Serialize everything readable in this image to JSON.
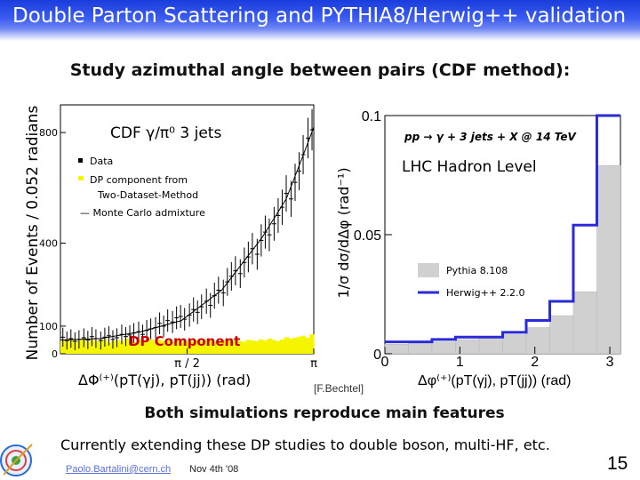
{
  "slide": {
    "title": "Double Parton Scattering and PYTHIA8/Herwig++ validation",
    "subtitle": "Study azimuthal angle between pairs (CDF method):",
    "conclusion": "Both simulations reproduce main features",
    "bullet": "Currently extending these DP studies to double boson, multi-HF, etc.",
    "email": "Paolo.Bartalini@cern.ch",
    "date": "Nov 4th '08",
    "page_number": "15",
    "citation": "[F.Bechtel]",
    "logo_icon": "detector-logo-icon"
  },
  "colors": {
    "title_bar": "#2a4ae8",
    "dp_fill": "#f5f500",
    "herwig_line": "#2a2ad8",
    "pythia_fill": "#d0d0d0",
    "dp_label": "#cc0000"
  },
  "chart_data": [
    {
      "type": "scatter",
      "title": "CDF γ/π⁰ 3 jets",
      "ylabel": "Number of Events / 0.052 radians",
      "xlabel": "ΔΦ⁽⁺⁾(pT(γj), pT(jj)) (rad)",
      "xlim": [
        0,
        3.1416
      ],
      "ylim": [
        0,
        900
      ],
      "yticks": [
        {
          "value": 0,
          "label": "0"
        },
        {
          "value": 100,
          "label": "100"
        },
        {
          "value": 400,
          "label": "400"
        },
        {
          "value": 800,
          "label": "800"
        }
      ],
      "xticks": [
        {
          "value": 1.5708,
          "label": "π / 2"
        },
        {
          "value": 3.1416,
          "label": "π"
        }
      ],
      "legend": [
        "Data",
        "DP component from",
        "Two-Dataset-Method",
        "— Monte Carlo admixture"
      ],
      "legend_position": "top-left",
      "dp_label": "DP Component",
      "data_x": [
        0.03,
        0.08,
        0.13,
        0.18,
        0.23,
        0.29,
        0.34,
        0.39,
        0.44,
        0.5,
        0.55,
        0.6,
        0.65,
        0.7,
        0.76,
        0.81,
        0.86,
        0.91,
        0.97,
        1.02,
        1.07,
        1.12,
        1.18,
        1.23,
        1.28,
        1.33,
        1.39,
        1.44,
        1.49,
        1.54,
        1.6,
        1.65,
        1.7,
        1.75,
        1.81,
        1.86,
        1.91,
        1.96,
        2.02,
        2.07,
        2.12,
        2.17,
        2.23,
        2.28,
        2.33,
        2.38,
        2.44,
        2.49,
        2.54,
        2.59,
        2.65,
        2.7,
        2.75,
        2.8,
        2.86,
        2.91,
        2.96,
        3.01,
        3.07,
        3.12
      ],
      "data_y": [
        60,
        48,
        55,
        45,
        52,
        58,
        50,
        62,
        55,
        48,
        60,
        65,
        52,
        58,
        70,
        62,
        68,
        75,
        80,
        70,
        85,
        90,
        95,
        110,
        100,
        120,
        115,
        130,
        135,
        125,
        140,
        160,
        150,
        170,
        190,
        175,
        210,
        230,
        220,
        260,
        280,
        300,
        290,
        330,
        350,
        380,
        360,
        410,
        440,
        430,
        470,
        500,
        530,
        580,
        560,
        620,
        660,
        720,
        780,
        810
      ],
      "dp_component": [
        50,
        45,
        52,
        40,
        48,
        55,
        42,
        50,
        45,
        48,
        52,
        40,
        46,
        50,
        44,
        55,
        48,
        42,
        50,
        45,
        48,
        52,
        44,
        50,
        46,
        48,
        42,
        55,
        40,
        48,
        46,
        44,
        50,
        45,
        52,
        48,
        44,
        46,
        50,
        48,
        45,
        52,
        46,
        44,
        50,
        48,
        46,
        52,
        48,
        55,
        50,
        46,
        52,
        60,
        55,
        58,
        62,
        65,
        58,
        70
      ],
      "mc_x": [
        0,
        0.5,
        1.0,
        1.5,
        2.0,
        2.5,
        2.8,
        3.0,
        3.1416
      ],
      "mc_y": [
        50,
        55,
        80,
        120,
        230,
        420,
        560,
        710,
        820
      ]
    },
    {
      "type": "bar",
      "title": "pp → γ + 3 jets + X @ 14 TeV",
      "subtitle": "LHC Hadron Level",
      "ylabel": "1/σ dσ/dΔφ (rad⁻¹)",
      "xlabel": "Δφ⁽⁺⁾(pT(γj), pT(jj)) (rad)",
      "xlim": [
        0,
        3.1416
      ],
      "ylim": [
        0,
        0.1
      ],
      "yticks": [
        {
          "value": 0,
          "label": "0"
        },
        {
          "value": 0.05,
          "label": "0.05"
        },
        {
          "value": 0.1,
          "label": "0.1"
        }
      ],
      "xticks": [
        {
          "value": 0,
          "label": "0"
        },
        {
          "value": 1,
          "label": "1"
        },
        {
          "value": 2,
          "label": "2"
        },
        {
          "value": 3,
          "label": "3"
        }
      ],
      "bin_edges": [
        0,
        0.314,
        0.628,
        0.942,
        1.257,
        1.571,
        1.885,
        2.199,
        2.513,
        2.827,
        3.1416
      ],
      "series": [
        {
          "name": "Pythia 8.108",
          "values": [
            0.004,
            0.005,
            0.005,
            0.006,
            0.007,
            0.008,
            0.011,
            0.016,
            0.026,
            0.079
          ]
        },
        {
          "name": "Herwig++ 2.2.0",
          "values": [
            0.005,
            0.005,
            0.006,
            0.007,
            0.007,
            0.009,
            0.014,
            0.022,
            0.054,
            0.102
          ]
        }
      ],
      "legend_position": "bottom-right"
    }
  ]
}
